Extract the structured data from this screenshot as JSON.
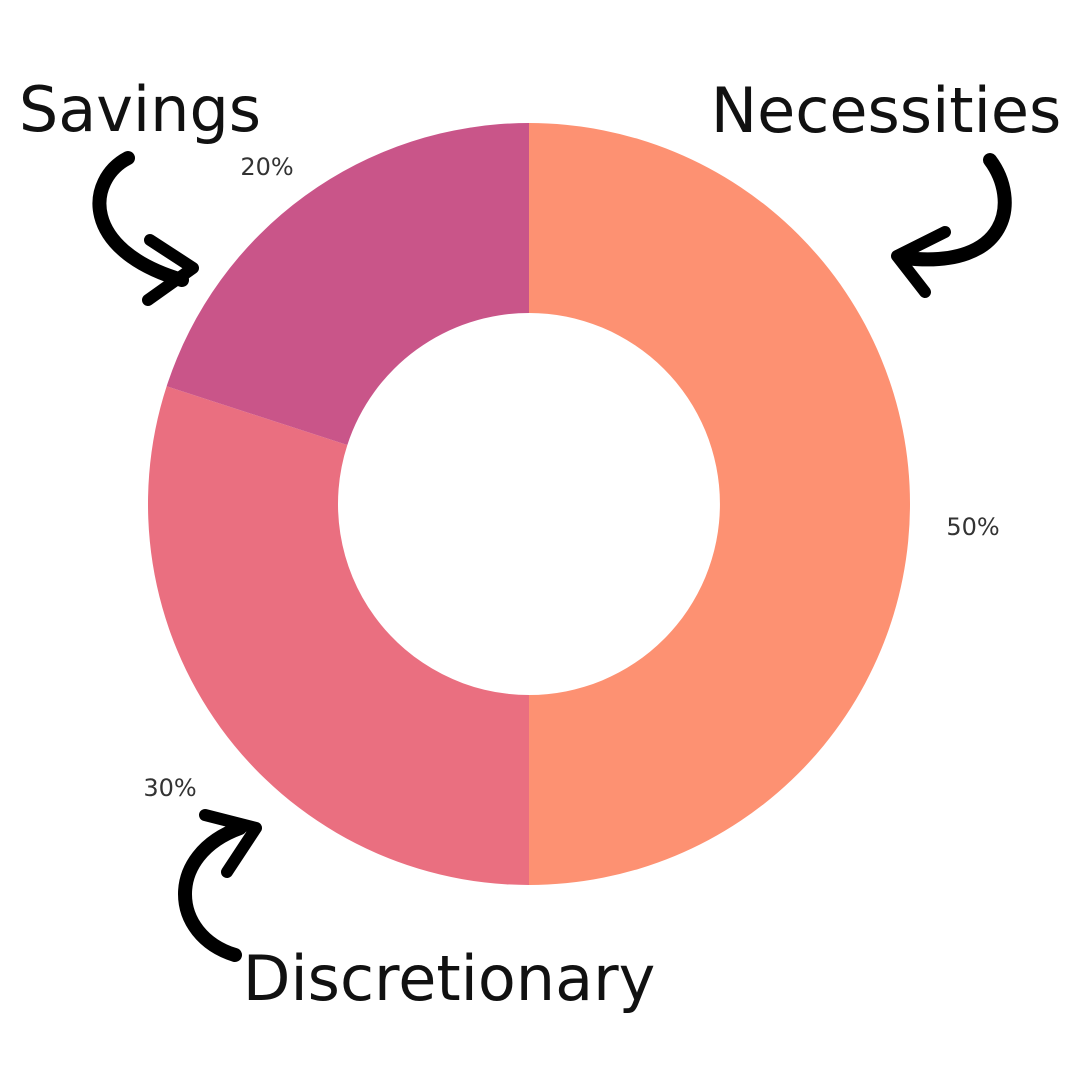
{
  "chart_data": {
    "type": "pie",
    "style": "donut",
    "categories": [
      "Necessities",
      "Discretionary",
      "Savings"
    ],
    "values": [
      50,
      30,
      20
    ],
    "data_labels": [
      "50%",
      "30%",
      "20%"
    ],
    "colors": [
      "#fd9172",
      "#ea6f80",
      "#c95589"
    ],
    "start_angle": "12 o'clock, clockwise",
    "title": "",
    "xlabel": "",
    "ylabel": ""
  },
  "arrows": {
    "color": "#000000",
    "icon": "curved-arrow-icon"
  }
}
